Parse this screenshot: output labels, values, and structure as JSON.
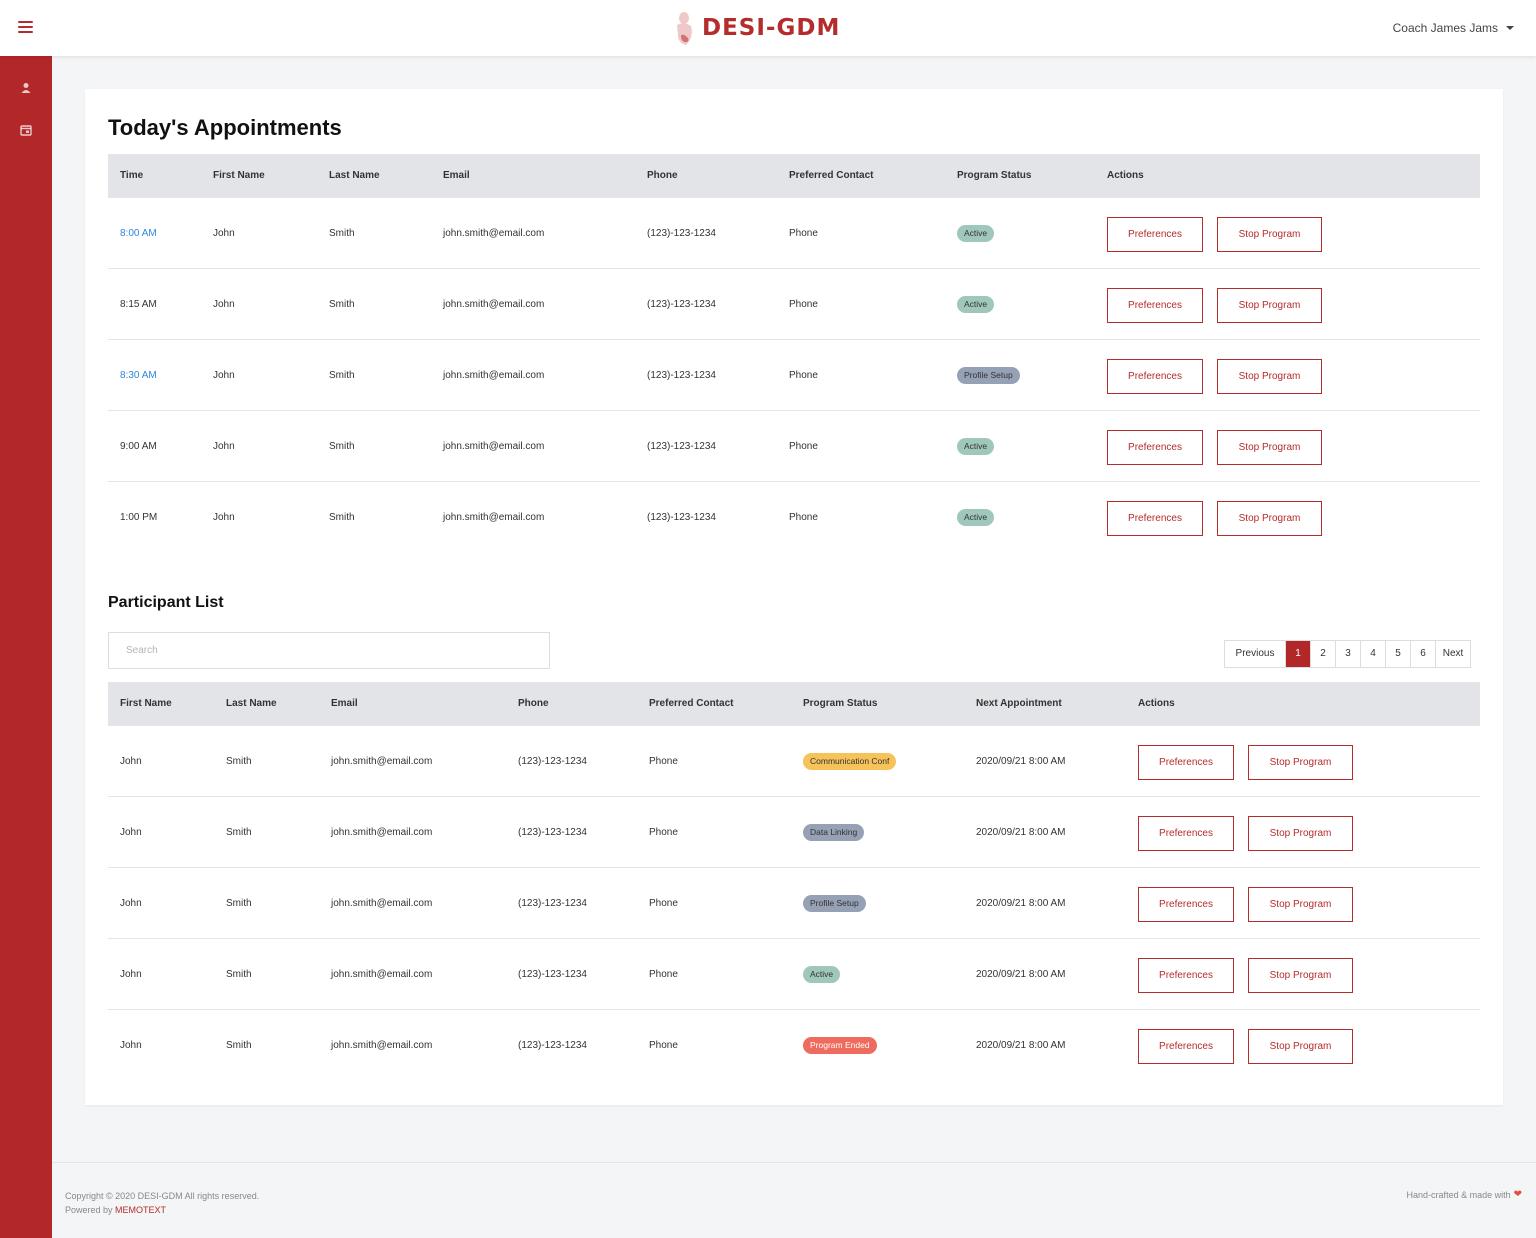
{
  "header": {
    "brand": "DESI-GDM",
    "user_name": "Coach James Jams",
    "brand_color": "#b52c2c"
  },
  "sidebar": {
    "color": "#b22727",
    "icons": [
      "user-icon",
      "calendar-icon"
    ]
  },
  "appointments": {
    "title": "Today's Appointments",
    "columns": [
      "Time",
      "First Name",
      "Last Name",
      "Email",
      "Phone",
      "Preferred Contact",
      "Program Status",
      "Actions"
    ],
    "rows": [
      {
        "time": "8:00 AM",
        "first": "John",
        "last": "Smith",
        "email": "john.smith@email.com",
        "phone": "(123)-123-1234",
        "contact": "Phone",
        "status": "Active",
        "pref": "Preferences",
        "stop": "Stop Program"
      },
      {
        "time": "8:15 AM",
        "first": "John",
        "last": "Smith",
        "email": "john.smith@email.com",
        "phone": "(123)-123-1234",
        "contact": "Phone",
        "status": "Active",
        "pref": "Preferences",
        "stop": "Stop Program"
      },
      {
        "time": "8:30 AM",
        "first": "John",
        "last": "Smith",
        "email": "john.smith@email.com",
        "phone": "(123)-123-1234",
        "contact": "Phone",
        "status": "Profile Setup",
        "pref": "Preferences",
        "stop": "Stop Program"
      },
      {
        "time": "9:00 AM",
        "first": "John",
        "last": "Smith",
        "email": "john.smith@email.com",
        "phone": "(123)-123-1234",
        "contact": "Phone",
        "status": "Active",
        "pref": "Preferences",
        "stop": "Stop Program"
      },
      {
        "time": "1:00 PM",
        "first": "John",
        "last": "Smith",
        "email": "john.smith@email.com",
        "phone": "(123)-123-1234",
        "contact": "Phone",
        "status": "Active",
        "pref": "Preferences",
        "stop": "Stop Program"
      }
    ]
  },
  "participants": {
    "title": "Participant List",
    "search_placeholder": "Search",
    "pagination": {
      "previous": "Previous",
      "pages": [
        "1",
        "2",
        "3",
        "4",
        "5",
        "6"
      ],
      "next": "Next",
      "active_page": "1"
    },
    "columns": [
      "First Name",
      "Last Name",
      "Email",
      "Phone",
      "Preferred Contact",
      "Program Status",
      "Next Appointment",
      "Actions"
    ],
    "rows": [
      {
        "first": "John",
        "last": "Smith",
        "email": "john.smith@email.com",
        "phone": "(123)-123-1234",
        "contact": "Phone",
        "status": "Communication Conf",
        "next": "2020/09/21 8:00 AM",
        "pref": "Preferences",
        "stop": "Stop Program"
      },
      {
        "first": "John",
        "last": "Smith",
        "email": "john.smith@email.com",
        "phone": "(123)-123-1234",
        "contact": "Phone",
        "status": "Data Linking",
        "next": "2020/09/21 8:00 AM",
        "pref": "Preferences",
        "stop": "Stop Program"
      },
      {
        "first": "John",
        "last": "Smith",
        "email": "john.smith@email.com",
        "phone": "(123)-123-1234",
        "contact": "Phone",
        "status": "Profile Setup",
        "next": "2020/09/21 8:00 AM",
        "pref": "Preferences",
        "stop": "Stop Program"
      },
      {
        "first": "John",
        "last": "Smith",
        "email": "john.smith@email.com",
        "phone": "(123)-123-1234",
        "contact": "Phone",
        "status": "Active",
        "next": "2020/09/21 8:00 AM",
        "pref": "Preferences",
        "stop": "Stop Program"
      },
      {
        "first": "John",
        "last": "Smith",
        "email": "john.smith@email.com",
        "phone": "(123)-123-1234",
        "contact": "Phone",
        "status": "Program Ended",
        "next": "2020/09/21 8:00 AM",
        "pref": "Preferences",
        "stop": "Stop Program"
      }
    ]
  },
  "footer": {
    "copyright": "Copyright © 2020 DESI-GDM All rights reserved.",
    "powered_prefix": "Powered by ",
    "powered_name": "MEMOTEXT",
    "right": "Hand-crafted & made with"
  }
}
